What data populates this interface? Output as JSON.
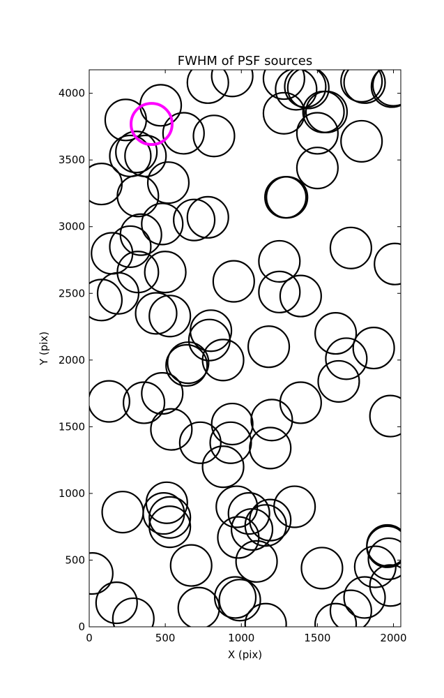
{
  "chart_data": {
    "type": "scatter",
    "title": "FWHM of PSF sources",
    "xlabel": "X (pix)",
    "ylabel": "Y (pix)",
    "xlim": [
      0,
      2048
    ],
    "ylim": [
      0,
      4176
    ],
    "xticks": [
      0,
      500,
      1000,
      1500,
      2000
    ],
    "yticks": [
      0,
      500,
      1000,
      1500,
      2000,
      2500,
      3000,
      3500,
      4000
    ],
    "grid": false,
    "marker": "open circle",
    "series": [
      {
        "color": "#000000",
        "circle_radius_pix": 135,
        "points": [
          [
            470,
            3910
          ],
          [
            240,
            3800
          ],
          [
            620,
            3700
          ],
          [
            820,
            3680
          ],
          [
            270,
            3530
          ],
          [
            310,
            3560
          ],
          [
            370,
            3530
          ],
          [
            80,
            3320
          ],
          [
            320,
            3230
          ],
          [
            520,
            3330
          ],
          [
            480,
            3020
          ],
          [
            690,
            3050
          ],
          [
            780,
            3070
          ],
          [
            340,
            2940
          ],
          [
            270,
            2850
          ],
          [
            150,
            2800
          ],
          [
            320,
            2660
          ],
          [
            500,
            2660
          ],
          [
            80,
            2450
          ],
          [
            190,
            2500
          ],
          [
            440,
            2350
          ],
          [
            530,
            2330
          ],
          [
            800,
            2220
          ],
          [
            790,
            2150
          ],
          [
            880,
            2000
          ],
          [
            650,
            1980
          ],
          [
            640,
            1960
          ],
          [
            1180,
            2100
          ],
          [
            950,
            2590
          ],
          [
            1250,
            2740
          ],
          [
            1250,
            2510
          ],
          [
            1390,
            2480
          ],
          [
            1620,
            2200
          ],
          [
            1690,
            2010
          ],
          [
            1640,
            1840
          ],
          [
            1870,
            2090
          ],
          [
            1720,
            2840
          ],
          [
            2010,
            2720
          ],
          [
            1290,
            3220
          ],
          [
            1300,
            3220
          ],
          [
            1500,
            3440
          ],
          [
            1790,
            3640
          ],
          [
            1500,
            3700
          ],
          [
            1280,
            3850
          ],
          [
            1540,
            3860
          ],
          [
            1560,
            3860
          ],
          [
            1280,
            4110
          ],
          [
            1360,
            4030
          ],
          [
            1440,
            4040
          ],
          [
            1420,
            4050
          ],
          [
            1790,
            4090
          ],
          [
            1810,
            4080
          ],
          [
            1990,
            4050
          ],
          [
            2000,
            4060
          ],
          [
            780,
            4080
          ],
          [
            940,
            4130
          ],
          [
            130,
            1690
          ],
          [
            360,
            1680
          ],
          [
            480,
            1750
          ],
          [
            540,
            1480
          ],
          [
            730,
            1380
          ],
          [
            880,
            1200
          ],
          [
            940,
            1520
          ],
          [
            930,
            1380
          ],
          [
            1200,
            1550
          ],
          [
            1190,
            1340
          ],
          [
            1390,
            1680
          ],
          [
            1980,
            1580
          ],
          [
            220,
            860
          ],
          [
            510,
            930
          ],
          [
            490,
            850
          ],
          [
            530,
            820
          ],
          [
            530,
            750
          ],
          [
            970,
            900
          ],
          [
            1050,
            850
          ],
          [
            1070,
            730
          ],
          [
            1160,
            760
          ],
          [
            1190,
            800
          ],
          [
            1350,
            900
          ],
          [
            980,
            670
          ],
          [
            1100,
            490
          ],
          [
            670,
            460
          ],
          [
            20,
            400
          ],
          [
            180,
            180
          ],
          [
            290,
            60
          ],
          [
            720,
            140
          ],
          [
            960,
            220
          ],
          [
            990,
            200
          ],
          [
            1160,
            20
          ],
          [
            1530,
            440
          ],
          [
            1620,
            20
          ],
          [
            1720,
            120
          ],
          [
            1810,
            220
          ],
          [
            1880,
            450
          ],
          [
            1960,
            610
          ],
          [
            1970,
            510
          ],
          [
            1980,
            310
          ],
          [
            1960,
            600
          ]
        ]
      },
      {
        "color": "#ff00ff",
        "circle_radius_pix": 135,
        "points": [
          [
            410,
            3770
          ]
        ]
      }
    ]
  }
}
